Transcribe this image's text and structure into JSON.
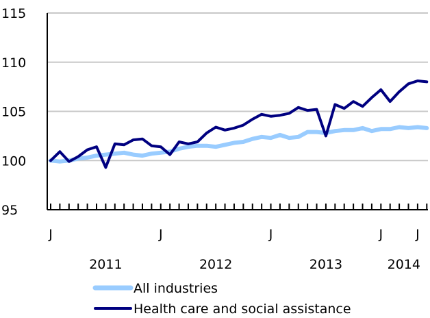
{
  "chart_data": {
    "type": "line",
    "title": "",
    "xlabel": "",
    "ylabel": "",
    "ylim": [
      95,
      115
    ],
    "y_ticks": [
      95,
      100,
      105,
      110,
      115
    ],
    "grid": "horizontal",
    "legend_position": "bottom",
    "x_period_start": "2011-01",
    "x_month_labels": [
      {
        "month_index": 0,
        "label": "J"
      },
      {
        "month_index": 12,
        "label": "J"
      },
      {
        "month_index": 24,
        "label": "J"
      },
      {
        "month_index": 36,
        "label": "J"
      },
      {
        "month_index": 40,
        "label": "J"
      }
    ],
    "x_year_labels": [
      {
        "label": "2011",
        "from": 0,
        "to": 12
      },
      {
        "label": "2012",
        "from": 12,
        "to": 24
      },
      {
        "label": "2013",
        "from": 24,
        "to": 36
      },
      {
        "label": "2014",
        "from": 36,
        "to": 41
      }
    ],
    "series": [
      {
        "name": "All industries",
        "color": "#99ccff",
        "values": [
          100.0,
          99.9,
          100.0,
          100.2,
          100.3,
          100.5,
          100.6,
          100.7,
          100.8,
          100.6,
          100.5,
          100.7,
          100.8,
          100.9,
          101.2,
          101.4,
          101.5,
          101.5,
          101.4,
          101.6,
          101.8,
          101.9,
          102.2,
          102.4,
          102.3,
          102.6,
          102.3,
          102.4,
          102.9,
          102.9,
          102.8,
          103.0,
          103.1,
          103.1,
          103.3,
          103.0,
          103.2,
          103.2,
          103.4,
          103.3,
          103.4,
          103.3
        ]
      },
      {
        "name": "Health care and social assistance",
        "color": "#000080",
        "values": [
          100.0,
          100.9,
          99.9,
          100.4,
          101.1,
          101.4,
          99.3,
          101.7,
          101.6,
          102.1,
          102.2,
          101.5,
          101.4,
          100.6,
          101.9,
          101.7,
          101.9,
          102.8,
          103.4,
          103.1,
          103.3,
          103.6,
          104.2,
          104.7,
          104.5,
          104.6,
          104.8,
          105.4,
          105.1,
          105.2,
          102.5,
          105.7,
          105.3,
          106.0,
          105.5,
          106.4,
          107.2,
          106.0,
          107.0,
          107.8,
          108.1,
          108.0
        ]
      }
    ]
  }
}
